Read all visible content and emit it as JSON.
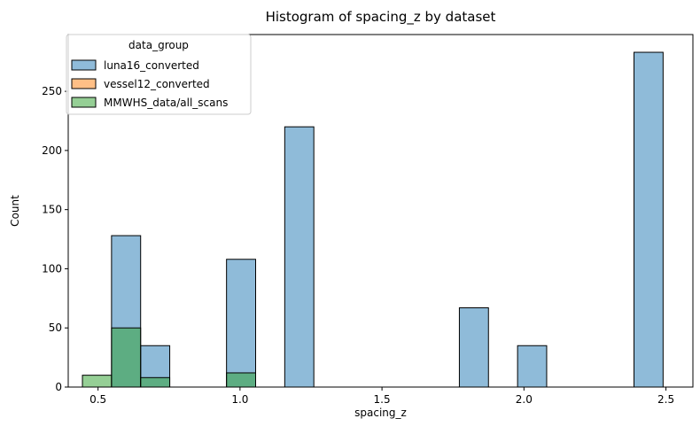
{
  "chart_data": {
    "type": "bar",
    "title": "Histogram of spacing_z by dataset",
    "xlabel": "spacing_z",
    "ylabel": "Count",
    "xlim": [
      0.395,
      2.595
    ],
    "ylim": [
      0,
      298
    ],
    "xticks": [
      0.5,
      1.0,
      1.5,
      2.0,
      2.5
    ],
    "xtick_labels": [
      "0.5",
      "1.0",
      "1.5",
      "2.0",
      "2.5"
    ],
    "yticks": [
      0,
      50,
      100,
      150,
      200,
      250
    ],
    "ytick_labels": [
      "0",
      "50",
      "100",
      "150",
      "200",
      "250"
    ],
    "grid": false,
    "legend": {
      "title": "data_group",
      "placement": "top-left"
    },
    "bin_width": 0.1025,
    "series": [
      {
        "name": "luna16_converted",
        "color": "#1f77b4",
        "bins": [
          {
            "x0": 0.5475,
            "x1": 0.65,
            "count": 128
          },
          {
            "x0": 0.65,
            "x1": 0.7525,
            "count": 35
          },
          {
            "x0": 0.9525,
            "x1": 1.055,
            "count": 108
          },
          {
            "x0": 1.1575,
            "x1": 1.26,
            "count": 220
          },
          {
            "x0": 1.7725,
            "x1": 1.875,
            "count": 67
          },
          {
            "x0": 1.9775,
            "x1": 2.08,
            "count": 35
          },
          {
            "x0": 2.3875,
            "x1": 2.49,
            "count": 283
          }
        ]
      },
      {
        "name": "vessel12_converted",
        "color": "#ff7f0e",
        "bins": []
      },
      {
        "name": "MMWHS_data/all_scans",
        "color": "#2ca02c",
        "bins": [
          {
            "x0": 0.445,
            "x1": 0.5475,
            "count": 10
          },
          {
            "x0": 0.5475,
            "x1": 0.65,
            "count": 50
          },
          {
            "x0": 0.65,
            "x1": 0.7525,
            "count": 8
          },
          {
            "x0": 0.9525,
            "x1": 1.055,
            "count": 12
          }
        ]
      }
    ]
  }
}
